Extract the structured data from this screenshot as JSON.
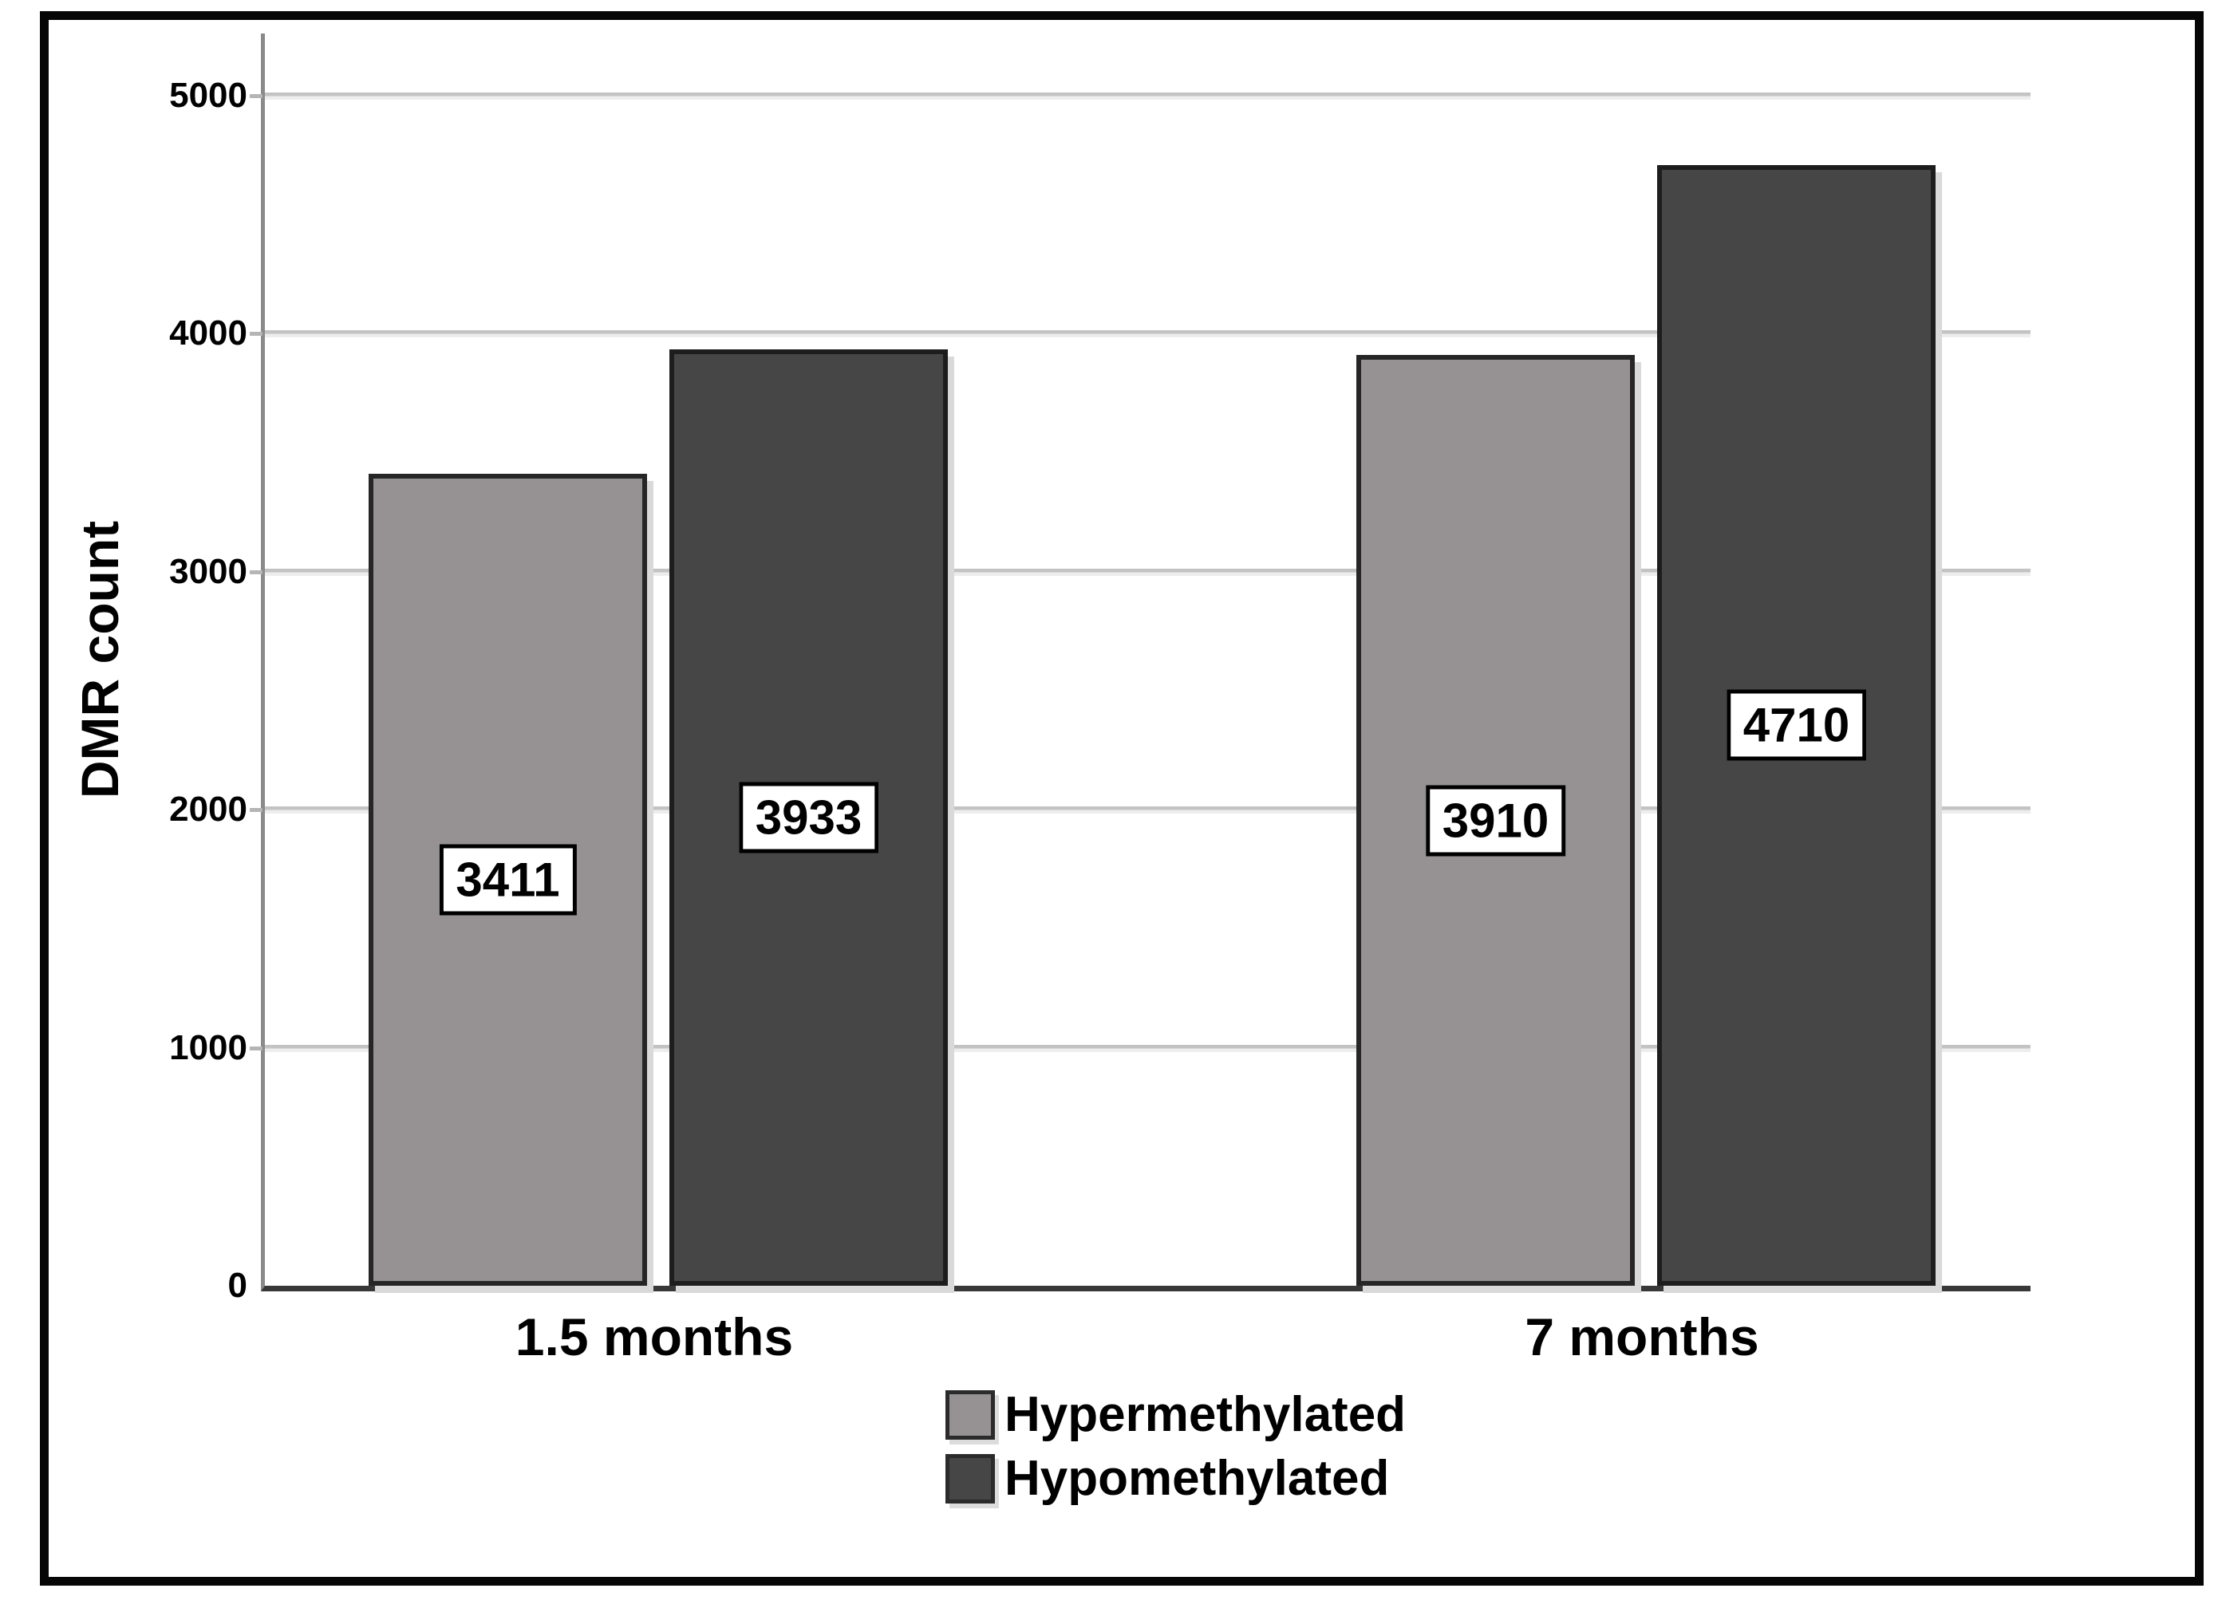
{
  "chart_data": {
    "type": "bar",
    "title": "",
    "ylabel": "DMR count",
    "xlabel": "",
    "categories": [
      "1.5 months",
      "7 months"
    ],
    "series": [
      {
        "name": "Hypermethylated",
        "values": [
          3411,
          3910
        ],
        "color": "#969293",
        "border_color": "#262626"
      },
      {
        "name": "Hypomethylated",
        "values": [
          3933,
          4710
        ],
        "color": "#464646",
        "border_color": "#1d1d1d"
      }
    ],
    "yticks": [
      0,
      1000,
      2000,
      3000,
      4000,
      5000
    ],
    "ylim": [
      0,
      5260
    ],
    "grid": true,
    "grid_color": "#c3c3c3",
    "bar_value_labels": true,
    "legend_position": "bottom-center",
    "frame_color": "#060606",
    "x_axis_color": "#383838",
    "y_axis_color": "#8a8a8a"
  }
}
